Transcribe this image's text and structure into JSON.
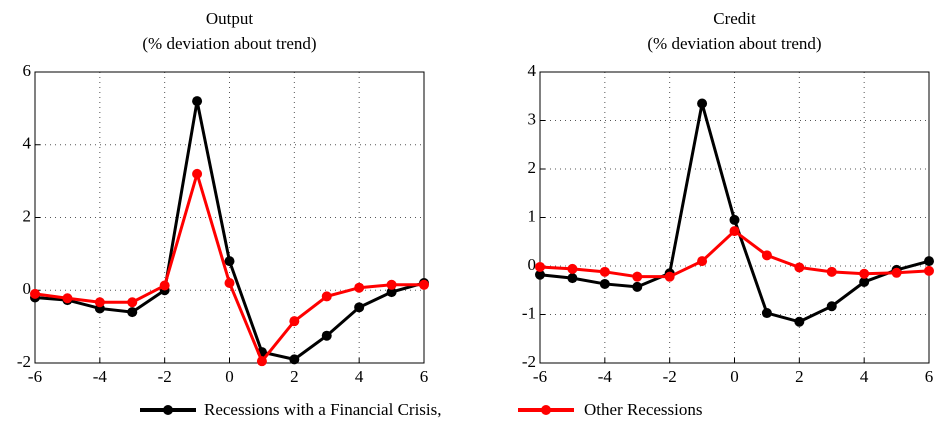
{
  "chart_data": [
    {
      "type": "line",
      "title": "Output",
      "subtitle": "(% deviation about trend)",
      "x": [
        -6,
        -5,
        -4,
        -3,
        -2,
        -1,
        0,
        1,
        2,
        3,
        4,
        5,
        6
      ],
      "xlim": [
        -6,
        6
      ],
      "xticks": [
        -6,
        -4,
        -2,
        0,
        2,
        4,
        6
      ],
      "ylim": [
        -2,
        6
      ],
      "yticks": [
        -2,
        0,
        2,
        4,
        6
      ],
      "grid": true,
      "series": [
        {
          "name": "Recessions with a Financial Crisis,",
          "color": "#000000",
          "values": [
            -0.2,
            -0.27,
            -0.5,
            -0.6,
            0,
            5.2,
            0.8,
            -1.7,
            -1.9,
            -1.25,
            -0.47,
            -0.05,
            0.2
          ]
        },
        {
          "name": "Other Recessions",
          "color": "#ff0000",
          "values": [
            -0.1,
            -0.22,
            -0.33,
            -0.33,
            0.13,
            3.2,
            0.2,
            -1.95,
            -0.85,
            -0.17,
            0.07,
            0.15,
            0.15
          ]
        }
      ]
    },
    {
      "type": "line",
      "title": "Credit",
      "subtitle": "(% deviation about trend)",
      "x": [
        -6,
        -5,
        -4,
        -3,
        -2,
        -1,
        0,
        1,
        2,
        3,
        4,
        5,
        6
      ],
      "xlim": [
        -6,
        6
      ],
      "xticks": [
        -6,
        -4,
        -2,
        0,
        2,
        4,
        6
      ],
      "ylim": [
        -2,
        4
      ],
      "yticks": [
        -2,
        -1,
        0,
        1,
        2,
        3,
        4
      ],
      "grid": true,
      "series": [
        {
          "color": "#000000",
          "values": [
            -0.18,
            -0.25,
            -0.37,
            -0.43,
            -0.15,
            3.35,
            0.95,
            -0.97,
            -1.15,
            -0.83,
            -0.33,
            -0.08,
            0.1
          ]
        },
        {
          "color": "#ff0000",
          "values": [
            -0.02,
            -0.06,
            -0.12,
            -0.22,
            -0.22,
            0.1,
            0.72,
            0.22,
            -0.03,
            -0.12,
            -0.16,
            -0.14,
            -0.1
          ]
        }
      ]
    }
  ]
}
